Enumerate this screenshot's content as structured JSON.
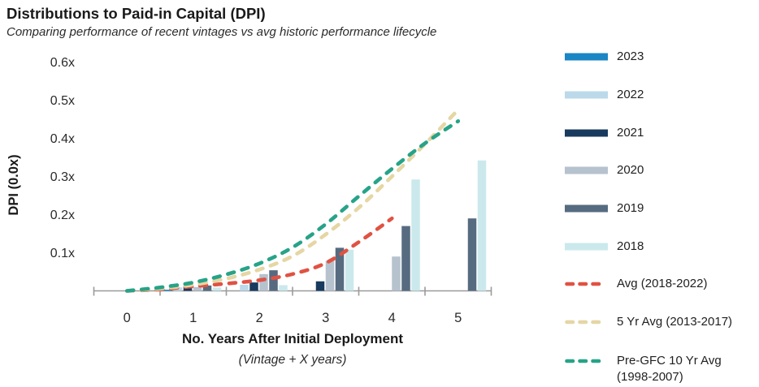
{
  "header": {
    "title": "Distributions to Paid-in Capital (DPI)",
    "subtitle": "Comparing performance of recent vintages vs avg historic performance lifecycle"
  },
  "colors": {
    "bar_2023": "#1A86C4",
    "bar_2022": "#BCD9EA",
    "bar_2021": "#173A5E",
    "bar_2020": "#B6C2CE",
    "bar_2019": "#566B80",
    "bar_2018": "#CBE9EC",
    "line_avg_2018_2022": "#E05243",
    "line_5yr_avg": "#E5D6A4",
    "line_pre_gfc": "#27A388",
    "axis": "#9B9B9B",
    "text": "#1A1A1A"
  },
  "legend": {
    "items": [
      {
        "label": "2023",
        "type": "bar",
        "color": "#1A86C4"
      },
      {
        "label": "2022",
        "type": "bar",
        "color": "#BCD9EA"
      },
      {
        "label": "2021",
        "type": "bar",
        "color": "#173A5E"
      },
      {
        "label": "2020",
        "type": "bar",
        "color": "#B6C2CE"
      },
      {
        "label": "2019",
        "type": "bar",
        "color": "#566B80"
      },
      {
        "label": "2018",
        "type": "bar",
        "color": "#CBE9EC"
      },
      {
        "label": "Avg (2018-2022)",
        "type": "line",
        "color": "#E05243"
      },
      {
        "label": "5 Yr Avg (2013-2017)",
        "type": "line",
        "color": "#E5D6A4"
      },
      {
        "label": "Pre-GFC 10 Yr Avg",
        "label2": "(1998-2007)",
        "type": "line",
        "color": "#27A388"
      }
    ]
  },
  "chart_data": {
    "type": "bar+line",
    "title": "Distributions to Paid-in Capital (DPI)",
    "xlabel": "No. Years After Initial Deployment",
    "xlabel_note": "(Vintage + X years)",
    "ylabel": "DPI (0.0x)",
    "categories": [
      0,
      1,
      2,
      3,
      4,
      5
    ],
    "xtick_labels": [
      "0",
      "1",
      "2",
      "3",
      "4",
      "5"
    ],
    "ytick_values": [
      0.1,
      0.2,
      0.3,
      0.4,
      0.5,
      0.6
    ],
    "ytick_labels": [
      "0.1x",
      "0.2x",
      "0.3x",
      "0.4x",
      "0.5x",
      "0.6x"
    ],
    "ylim": [
      0,
      0.65
    ],
    "grid": false,
    "legend_position": "right",
    "bar_series": [
      {
        "name": "2023",
        "color": "#1A86C4",
        "values": [
          0,
          0.003,
          null,
          null,
          null,
          null
        ]
      },
      {
        "name": "2022",
        "color": "#BCD9EA",
        "values": [
          0,
          0.009,
          0.016,
          null,
          null,
          null
        ]
      },
      {
        "name": "2021",
        "color": "#173A5E",
        "values": [
          0,
          0.012,
          0.022,
          0.025,
          null,
          null
        ]
      },
      {
        "name": "2020",
        "color": "#B6C2CE",
        "values": [
          0,
          0.01,
          0.044,
          0.079,
          0.09,
          null
        ]
      },
      {
        "name": "2019",
        "color": "#566B80",
        "values": [
          0,
          0.014,
          0.054,
          0.113,
          0.17,
          0.19
        ]
      },
      {
        "name": "2018",
        "color": "#CBE9EC",
        "values": [
          0,
          0.009,
          0.015,
          0.108,
          0.292,
          0.342
        ]
      }
    ],
    "line_series": [
      {
        "name": "Avg (2018-2022)",
        "color": "#E05243",
        "points": [
          [
            0,
            0
          ],
          [
            0.5,
            0.004
          ],
          [
            1,
            0.012
          ],
          [
            1.5,
            0.019
          ],
          [
            2,
            0.028
          ],
          [
            2.5,
            0.044
          ],
          [
            3,
            0.073
          ],
          [
            3.5,
            0.128
          ],
          [
            4,
            0.19
          ]
        ]
      },
      {
        "name": "5 Yr Avg (2013-2017)",
        "color": "#E5D6A4",
        "points": [
          [
            0,
            0
          ],
          [
            0.5,
            0.006
          ],
          [
            1,
            0.016
          ],
          [
            1.5,
            0.032
          ],
          [
            2,
            0.056
          ],
          [
            2.5,
            0.091
          ],
          [
            3,
            0.148
          ],
          [
            3.5,
            0.218
          ],
          [
            4,
            0.3
          ],
          [
            4.5,
            0.385
          ],
          [
            5,
            0.475
          ]
        ]
      },
      {
        "name": "Pre-GFC 10 Yr Avg (1998-2007)",
        "color": "#27A388",
        "points": [
          [
            0,
            0
          ],
          [
            0.5,
            0.009
          ],
          [
            1,
            0.022
          ],
          [
            1.5,
            0.043
          ],
          [
            2,
            0.072
          ],
          [
            2.5,
            0.114
          ],
          [
            3,
            0.175
          ],
          [
            3.5,
            0.248
          ],
          [
            4,
            0.32
          ],
          [
            4.5,
            0.387
          ],
          [
            5,
            0.445
          ]
        ]
      }
    ]
  }
}
